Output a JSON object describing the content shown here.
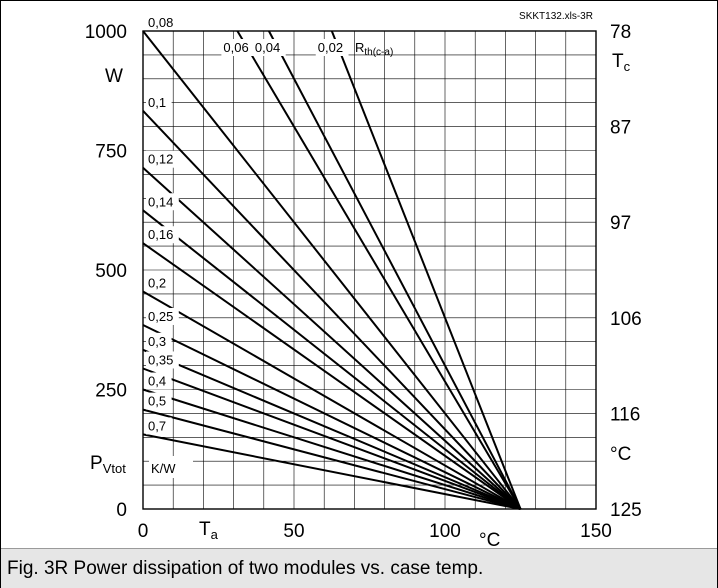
{
  "chart_data": {
    "type": "line",
    "id_label": "SKKT132.xls-3R",
    "x_axis": {
      "ticks": [
        0,
        50,
        100,
        150
      ],
      "label": "T",
      "label_sub": "a",
      "unit": "°C",
      "range": [
        0,
        150
      ],
      "minor_step": 10
    },
    "y_left": {
      "ticks": [
        0,
        250,
        500,
        750,
        1000
      ],
      "unit": "W",
      "label": "P",
      "label_sub": "Vtot",
      "range": [
        0,
        1000
      ],
      "minor_step": 50
    },
    "y_right": {
      "ticks": [
        "78",
        "87",
        "97",
        "106",
        "116",
        "125"
      ],
      "label": "T",
      "label_sub": "c",
      "unit": "°C"
    },
    "rth_header": {
      "top_values": [
        "0,06",
        "0,04",
        "0,02"
      ],
      "symbol": "R",
      "symbol_sub": "th(c-a)",
      "unit": "K/W"
    },
    "side_labels": [
      "0,08",
      "0,1",
      "0,12",
      "0,14",
      "0,16",
      "0,2",
      "0,25",
      "0,3",
      "0,35",
      "0,4",
      "0,5",
      "0,7"
    ],
    "convergence": {
      "x": 125,
      "y": 0
    },
    "series": [
      {
        "name": "0,02",
        "rth": 0.02,
        "points": [
          [
            62.5,
            1000
          ],
          [
            125,
            0
          ]
        ]
      },
      {
        "name": "0,04",
        "rth": 0.04,
        "points": [
          [
            41.7,
            1000
          ],
          [
            125,
            0
          ]
        ]
      },
      {
        "name": "0,06",
        "rth": 0.06,
        "points": [
          [
            31.25,
            1000
          ],
          [
            125,
            0
          ]
        ]
      },
      {
        "name": "0,08",
        "rth": 0.08,
        "points": [
          [
            0,
            1000
          ],
          [
            125,
            0
          ]
        ]
      },
      {
        "name": "0,1",
        "rth": 0.1,
        "points": [
          [
            0,
            833
          ],
          [
            125,
            0
          ]
        ]
      },
      {
        "name": "0,12",
        "rth": 0.12,
        "points": [
          [
            0,
            714
          ],
          [
            125,
            0
          ]
        ]
      },
      {
        "name": "0,14",
        "rth": 0.14,
        "points": [
          [
            0,
            625
          ],
          [
            125,
            0
          ]
        ]
      },
      {
        "name": "0,16",
        "rth": 0.16,
        "points": [
          [
            0,
            556
          ],
          [
            125,
            0
          ]
        ]
      },
      {
        "name": "0,2",
        "rth": 0.2,
        "points": [
          [
            0,
            455
          ],
          [
            125,
            0
          ]
        ]
      },
      {
        "name": "0,25",
        "rth": 0.25,
        "points": [
          [
            0,
            385
          ],
          [
            125,
            0
          ]
        ]
      },
      {
        "name": "0,3",
        "rth": 0.3,
        "points": [
          [
            0,
            333
          ],
          [
            125,
            0
          ]
        ]
      },
      {
        "name": "0,35",
        "rth": 0.35,
        "points": [
          [
            0,
            294
          ],
          [
            125,
            0
          ]
        ]
      },
      {
        "name": "0,4",
        "rth": 0.4,
        "points": [
          [
            0,
            250
          ],
          [
            125,
            0
          ]
        ]
      },
      {
        "name": "0,5",
        "rth": 0.5,
        "points": [
          [
            0,
            208
          ],
          [
            125,
            0
          ]
        ]
      },
      {
        "name": "0,7",
        "rth": 0.7,
        "points": [
          [
            0,
            156
          ],
          [
            125,
            0
          ]
        ]
      }
    ],
    "grid": true,
    "legend": "none"
  },
  "caption": "Fig. 3R Power dissipation of two modules vs. case temp.",
  "colors": {
    "line": "#000000",
    "grid": "#000000",
    "caption_bg": "#e6e6e6"
  }
}
